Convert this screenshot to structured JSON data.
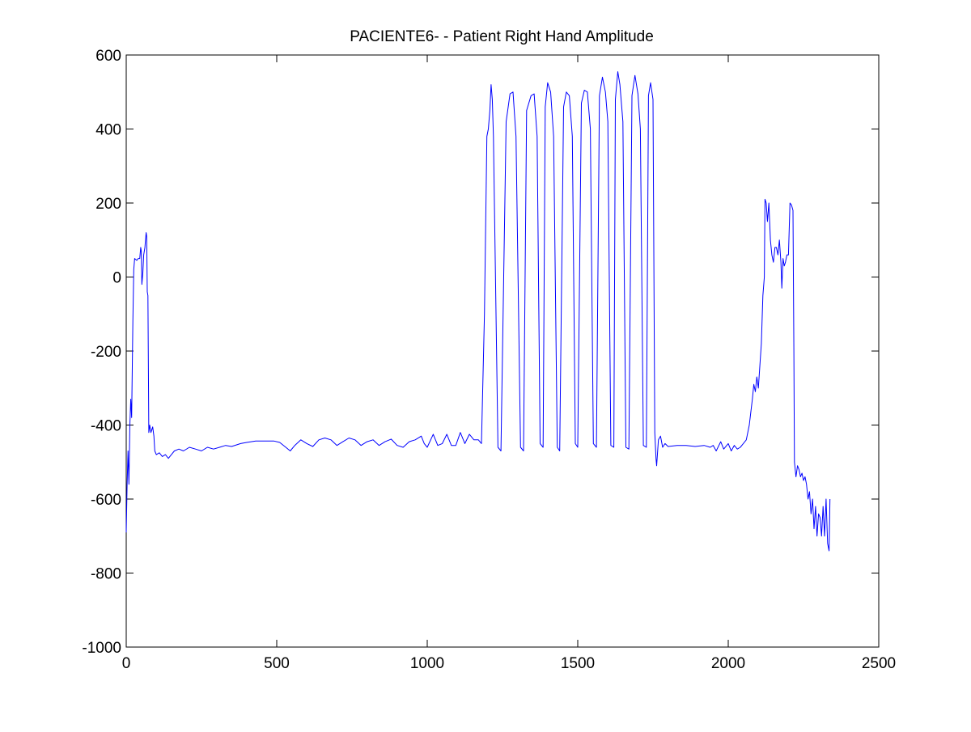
{
  "chart_data": {
    "type": "line",
    "title": "PACIENTE6- - Patient Right Hand Amplitude",
    "xlabel": "",
    "ylabel": "",
    "xlim": [
      0,
      2500
    ],
    "ylim": [
      -1000,
      600
    ],
    "xticks": [
      0,
      500,
      1000,
      1500,
      2000,
      2500
    ],
    "yticks": [
      -1000,
      -800,
      -600,
      -400,
      -200,
      0,
      200,
      400,
      600
    ],
    "grid": false,
    "colors": {
      "line": "#0000ff",
      "axes": "#000000",
      "background": "#ffffff"
    },
    "series": [
      {
        "points": [
          [
            0,
            -690
          ],
          [
            3,
            -560
          ],
          [
            6,
            -470
          ],
          [
            9,
            -560
          ],
          [
            12,
            -400
          ],
          [
            15,
            -330
          ],
          [
            18,
            -380
          ],
          [
            22,
            -120
          ],
          [
            25,
            20
          ],
          [
            28,
            50
          ],
          [
            35,
            45
          ],
          [
            40,
            50
          ],
          [
            45,
            50
          ],
          [
            48,
            80
          ],
          [
            50,
            70
          ],
          [
            52,
            -20
          ],
          [
            55,
            10
          ],
          [
            58,
            60
          ],
          [
            62,
            80
          ],
          [
            64,
            100
          ],
          [
            66,
            120
          ],
          [
            68,
            110
          ],
          [
            70,
            -40
          ],
          [
            72,
            -50
          ],
          [
            75,
            -420
          ],
          [
            78,
            -400
          ],
          [
            82,
            -420
          ],
          [
            88,
            -405
          ],
          [
            92,
            -430
          ],
          [
            95,
            -470
          ],
          [
            100,
            -480
          ],
          [
            110,
            -475
          ],
          [
            120,
            -485
          ],
          [
            130,
            -480
          ],
          [
            140,
            -490
          ],
          [
            150,
            -480
          ],
          [
            160,
            -470
          ],
          [
            175,
            -465
          ],
          [
            190,
            -470
          ],
          [
            210,
            -460
          ],
          [
            230,
            -465
          ],
          [
            250,
            -470
          ],
          [
            270,
            -460
          ],
          [
            290,
            -465
          ],
          [
            310,
            -460
          ],
          [
            330,
            -455
          ],
          [
            350,
            -458
          ],
          [
            380,
            -450
          ],
          [
            400,
            -447
          ],
          [
            430,
            -443
          ],
          [
            460,
            -443
          ],
          [
            490,
            -443
          ],
          [
            510,
            -447
          ],
          [
            530,
            -460
          ],
          [
            545,
            -470
          ],
          [
            560,
            -455
          ],
          [
            580,
            -440
          ],
          [
            600,
            -450
          ],
          [
            620,
            -458
          ],
          [
            640,
            -440
          ],
          [
            660,
            -435
          ],
          [
            680,
            -440
          ],
          [
            700,
            -455
          ],
          [
            720,
            -445
          ],
          [
            740,
            -435
          ],
          [
            760,
            -440
          ],
          [
            780,
            -455
          ],
          [
            800,
            -445
          ],
          [
            820,
            -440
          ],
          [
            840,
            -455
          ],
          [
            860,
            -445
          ],
          [
            880,
            -438
          ],
          [
            900,
            -455
          ],
          [
            920,
            -460
          ],
          [
            940,
            -445
          ],
          [
            960,
            -440
          ],
          [
            980,
            -430
          ],
          [
            990,
            -450
          ],
          [
            1000,
            -460
          ],
          [
            1020,
            -425
          ],
          [
            1035,
            -455
          ],
          [
            1050,
            -450
          ],
          [
            1065,
            -425
          ],
          [
            1080,
            -455
          ],
          [
            1095,
            -455
          ],
          [
            1110,
            -420
          ],
          [
            1125,
            -450
          ],
          [
            1140,
            -425
          ],
          [
            1155,
            -440
          ],
          [
            1170,
            -440
          ],
          [
            1180,
            -450
          ],
          [
            1190,
            -100
          ],
          [
            1198,
            380
          ],
          [
            1203,
            400
          ],
          [
            1208,
            450
          ],
          [
            1212,
            520
          ],
          [
            1216,
            480
          ],
          [
            1220,
            380
          ],
          [
            1235,
            -460
          ],
          [
            1245,
            -470
          ],
          [
            1262,
            420
          ],
          [
            1275,
            495
          ],
          [
            1285,
            500
          ],
          [
            1295,
            380
          ],
          [
            1310,
            -460
          ],
          [
            1320,
            -470
          ],
          [
            1330,
            450
          ],
          [
            1345,
            490
          ],
          [
            1355,
            495
          ],
          [
            1365,
            380
          ],
          [
            1375,
            -450
          ],
          [
            1385,
            -460
          ],
          [
            1392,
            460
          ],
          [
            1400,
            525
          ],
          [
            1410,
            500
          ],
          [
            1420,
            380
          ],
          [
            1432,
            -460
          ],
          [
            1440,
            -470
          ],
          [
            1453,
            460
          ],
          [
            1462,
            500
          ],
          [
            1472,
            490
          ],
          [
            1482,
            380
          ],
          [
            1492,
            -450
          ],
          [
            1500,
            -460
          ],
          [
            1512,
            470
          ],
          [
            1522,
            505
          ],
          [
            1532,
            500
          ],
          [
            1542,
            400
          ],
          [
            1552,
            -450
          ],
          [
            1562,
            -460
          ],
          [
            1572,
            490
          ],
          [
            1582,
            540
          ],
          [
            1592,
            500
          ],
          [
            1600,
            420
          ],
          [
            1610,
            -455
          ],
          [
            1620,
            -460
          ],
          [
            1625,
            480
          ],
          [
            1633,
            555
          ],
          [
            1640,
            520
          ],
          [
            1650,
            420
          ],
          [
            1660,
            -460
          ],
          [
            1670,
            -465
          ],
          [
            1680,
            490
          ],
          [
            1690,
            545
          ],
          [
            1700,
            495
          ],
          [
            1708,
            400
          ],
          [
            1718,
            -455
          ],
          [
            1728,
            -460
          ],
          [
            1735,
            490
          ],
          [
            1742,
            525
          ],
          [
            1750,
            480
          ],
          [
            1756,
            -420
          ],
          [
            1760,
            -490
          ],
          [
            1762,
            -510
          ],
          [
            1768,
            -440
          ],
          [
            1775,
            -430
          ],
          [
            1782,
            -460
          ],
          [
            1790,
            -450
          ],
          [
            1800,
            -458
          ],
          [
            1830,
            -455
          ],
          [
            1860,
            -455
          ],
          [
            1890,
            -458
          ],
          [
            1920,
            -455
          ],
          [
            1940,
            -460
          ],
          [
            1950,
            -455
          ],
          [
            1960,
            -470
          ],
          [
            1975,
            -445
          ],
          [
            1985,
            -465
          ],
          [
            2000,
            -450
          ],
          [
            2010,
            -470
          ],
          [
            2020,
            -455
          ],
          [
            2030,
            -465
          ],
          [
            2040,
            -460
          ],
          [
            2050,
            -450
          ],
          [
            2060,
            -440
          ],
          [
            2070,
            -400
          ],
          [
            2080,
            -330
          ],
          [
            2085,
            -290
          ],
          [
            2090,
            -310
          ],
          [
            2095,
            -270
          ],
          [
            2100,
            -300
          ],
          [
            2110,
            -180
          ],
          [
            2115,
            -50
          ],
          [
            2120,
            0
          ],
          [
            2122,
            210
          ],
          [
            2126,
            200
          ],
          [
            2130,
            150
          ],
          [
            2135,
            200
          ],
          [
            2140,
            100
          ],
          [
            2145,
            60
          ],
          [
            2150,
            40
          ],
          [
            2155,
            80
          ],
          [
            2160,
            80
          ],
          [
            2165,
            60
          ],
          [
            2170,
            100
          ],
          [
            2175,
            40
          ],
          [
            2178,
            -30
          ],
          [
            2182,
            50
          ],
          [
            2186,
            30
          ],
          [
            2190,
            40
          ],
          [
            2195,
            60
          ],
          [
            2200,
            60
          ],
          [
            2205,
            200
          ],
          [
            2210,
            195
          ],
          [
            2215,
            180
          ],
          [
            2218,
            -200
          ],
          [
            2220,
            -500
          ],
          [
            2225,
            -540
          ],
          [
            2230,
            -510
          ],
          [
            2235,
            -520
          ],
          [
            2240,
            -540
          ],
          [
            2245,
            -530
          ],
          [
            2250,
            -550
          ],
          [
            2255,
            -540
          ],
          [
            2260,
            -560
          ],
          [
            2265,
            -600
          ],
          [
            2270,
            -580
          ],
          [
            2275,
            -640
          ],
          [
            2280,
            -600
          ],
          [
            2285,
            -680
          ],
          [
            2290,
            -620
          ],
          [
            2295,
            -700
          ],
          [
            2300,
            -640
          ],
          [
            2305,
            -650
          ],
          [
            2310,
            -700
          ],
          [
            2315,
            -620
          ],
          [
            2320,
            -700
          ],
          [
            2325,
            -600
          ],
          [
            2330,
            -720
          ],
          [
            2335,
            -740
          ],
          [
            2338,
            -600
          ]
        ]
      }
    ]
  }
}
